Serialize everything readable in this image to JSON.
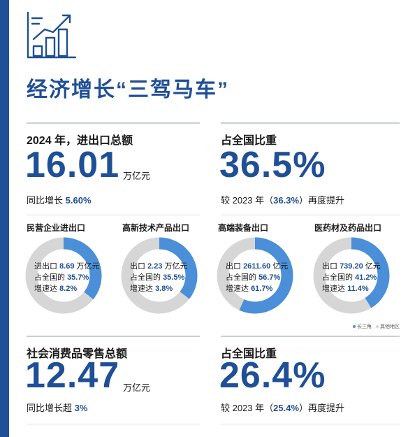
{
  "page_title": "经济增长“三驾马车”",
  "colors": {
    "accent": "#1f4f96",
    "series_yrd": "#4a8fd8",
    "series_other": "#d6d6d6"
  },
  "icon": "bar-chart-trend-icon",
  "trade": {
    "label": "2024 年，进出口总额",
    "value": "16.01",
    "unit": "万亿元",
    "growth_prefix": "同比增长",
    "growth_value": "5.60%"
  },
  "trade_share": {
    "label": "占全国比重",
    "value": "36.5%",
    "note_prefix": "较 2023 年（",
    "note_value": "36.3%",
    "note_suffix": "）再度提升"
  },
  "retail": {
    "label": "社会消费品零售总额",
    "value": "12.47",
    "unit": "万亿元",
    "growth_prefix": "同比增长超",
    "growth_value": "3%"
  },
  "retail_share": {
    "label": "占全国比重",
    "value": "26.4%",
    "note_prefix": "较 2023 年（",
    "note_value": "25.4%",
    "note_suffix": "）再度提升"
  },
  "legend": {
    "yrd": "长三角",
    "other": "其他地区"
  },
  "chart_data": [
    {
      "type": "pie",
      "title": "民营企业进出口",
      "categories": [
        "长三角",
        "其他地区"
      ],
      "values": [
        35.7,
        64.3
      ],
      "lines": [
        {
          "prefix": "进出口 ",
          "value": "8.69",
          "suffix": " 万亿元"
        },
        {
          "prefix": "占全国的 ",
          "value": "35.7%",
          "suffix": ""
        },
        {
          "prefix": "增速达 ",
          "value": "8.2%",
          "suffix": ""
        }
      ]
    },
    {
      "type": "pie",
      "title": "高新技术产品出口",
      "categories": [
        "长三角",
        "其他地区"
      ],
      "values": [
        35.5,
        64.5
      ],
      "lines": [
        {
          "prefix": "出口 ",
          "value": "2.23",
          "suffix": " 万亿元"
        },
        {
          "prefix": "占全国的 ",
          "value": "35.5%",
          "suffix": ""
        },
        {
          "prefix": "增速达 ",
          "value": "3.8%",
          "suffix": ""
        }
      ]
    },
    {
      "type": "pie",
      "title": "高端装备出口",
      "categories": [
        "长三角",
        "其他地区"
      ],
      "values": [
        56.7,
        43.3
      ],
      "lines": [
        {
          "prefix": "出口 ",
          "value": "2611.60",
          "suffix": " 亿元"
        },
        {
          "prefix": "占全国的 ",
          "value": "56.7%",
          "suffix": ""
        },
        {
          "prefix": "增速达 ",
          "value": "61.7%",
          "suffix": ""
        }
      ]
    },
    {
      "type": "pie",
      "title": "医药材及药品出口",
      "categories": [
        "长三角",
        "其他地区"
      ],
      "values": [
        41.2,
        58.8
      ],
      "lines": [
        {
          "prefix": "出口 ",
          "value": "739.20",
          "suffix": " 亿元"
        },
        {
          "prefix": "占全国的 ",
          "value": "41.2%",
          "suffix": ""
        },
        {
          "prefix": "增速达 ",
          "value": "11.4%",
          "suffix": ""
        }
      ]
    }
  ]
}
